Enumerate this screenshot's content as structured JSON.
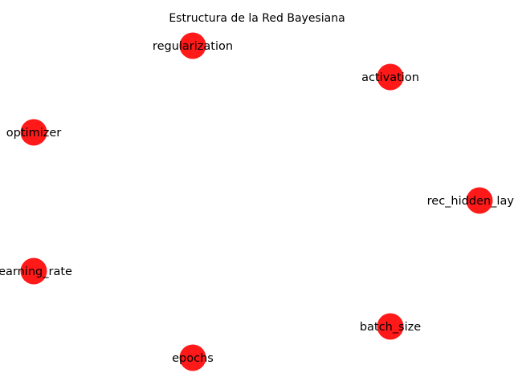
{
  "title": "Estructura de la Red Bayesiana",
  "node_color": "#ff0000",
  "nodes": [
    {
      "id": "regularization",
      "label": "regularization"
    },
    {
      "id": "activation",
      "label": "activation"
    },
    {
      "id": "optimizer",
      "label": "optimizer"
    },
    {
      "id": "rec_hidden_layers",
      "label": "rec_hidden_layers"
    },
    {
      "id": "learning_rate",
      "label": "learning_rate"
    },
    {
      "id": "batch_size",
      "label": "batch_size"
    },
    {
      "id": "epochs",
      "label": "epochs"
    }
  ],
  "edges": []
}
